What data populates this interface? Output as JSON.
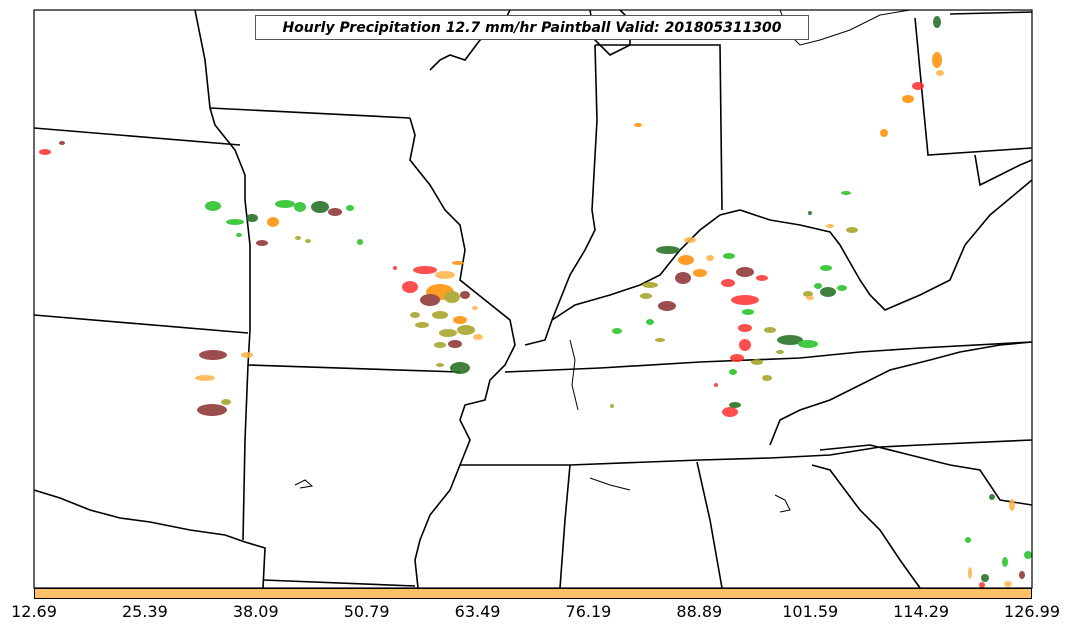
{
  "title": "Hourly Precipitation 12.7 mm/hr Paintball Valid: 201805311300",
  "colorbar": {
    "color": "#fdc069",
    "ticks": [
      "12.69",
      "25.39",
      "38.09",
      "50.79",
      "63.49",
      "76.19",
      "88.89",
      "101.59",
      "114.29",
      "126.99"
    ]
  },
  "colors": {
    "red": "#ff3030",
    "orange": "#ff8c00",
    "light_orange": "#ffb347",
    "green": "#20c020",
    "dark_green": "#1e6b1e",
    "olive": "#a0a020",
    "brown": "#8b2e2e",
    "black": "#000000"
  }
}
